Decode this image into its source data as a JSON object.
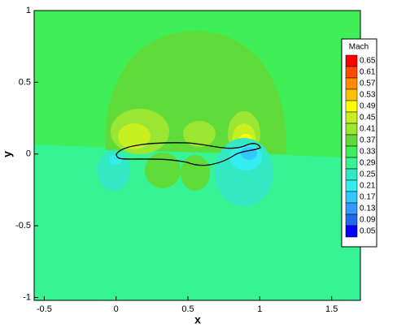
{
  "chart_data": {
    "type": "contour",
    "x_label": "x",
    "y_label": "y",
    "xlim": [
      -0.57,
      1.7
    ],
    "ylim": [
      -1.02,
      1
    ],
    "xticks": [
      -0.5,
      0,
      0.5,
      1,
      1.5
    ],
    "yticks": [
      -1,
      -0.5,
      0,
      0.5,
      1
    ],
    "legend_title": "Mach",
    "levels": [
      {
        "value": 0.65,
        "color": "#ff0000"
      },
      {
        "value": 0.61,
        "color": "#ff4a00"
      },
      {
        "value": 0.57,
        "color": "#ff8c00"
      },
      {
        "value": 0.53,
        "color": "#ffc000"
      },
      {
        "value": 0.49,
        "color": "#ffff00"
      },
      {
        "value": 0.45,
        "color": "#c8f020"
      },
      {
        "value": 0.41,
        "color": "#9be633"
      },
      {
        "value": 0.37,
        "color": "#5fdc3a"
      },
      {
        "value": 0.33,
        "color": "#40ee58"
      },
      {
        "value": 0.29,
        "color": "#36f394"
      },
      {
        "value": 0.25,
        "color": "#33e8c4"
      },
      {
        "value": 0.21,
        "color": "#33eeee"
      },
      {
        "value": 0.17,
        "color": "#33c8ff"
      },
      {
        "value": 0.13,
        "color": "#3399ff"
      },
      {
        "value": 0.09,
        "color": "#2266ee"
      },
      {
        "value": 0.05,
        "color": "#0000ff"
      }
    ]
  }
}
